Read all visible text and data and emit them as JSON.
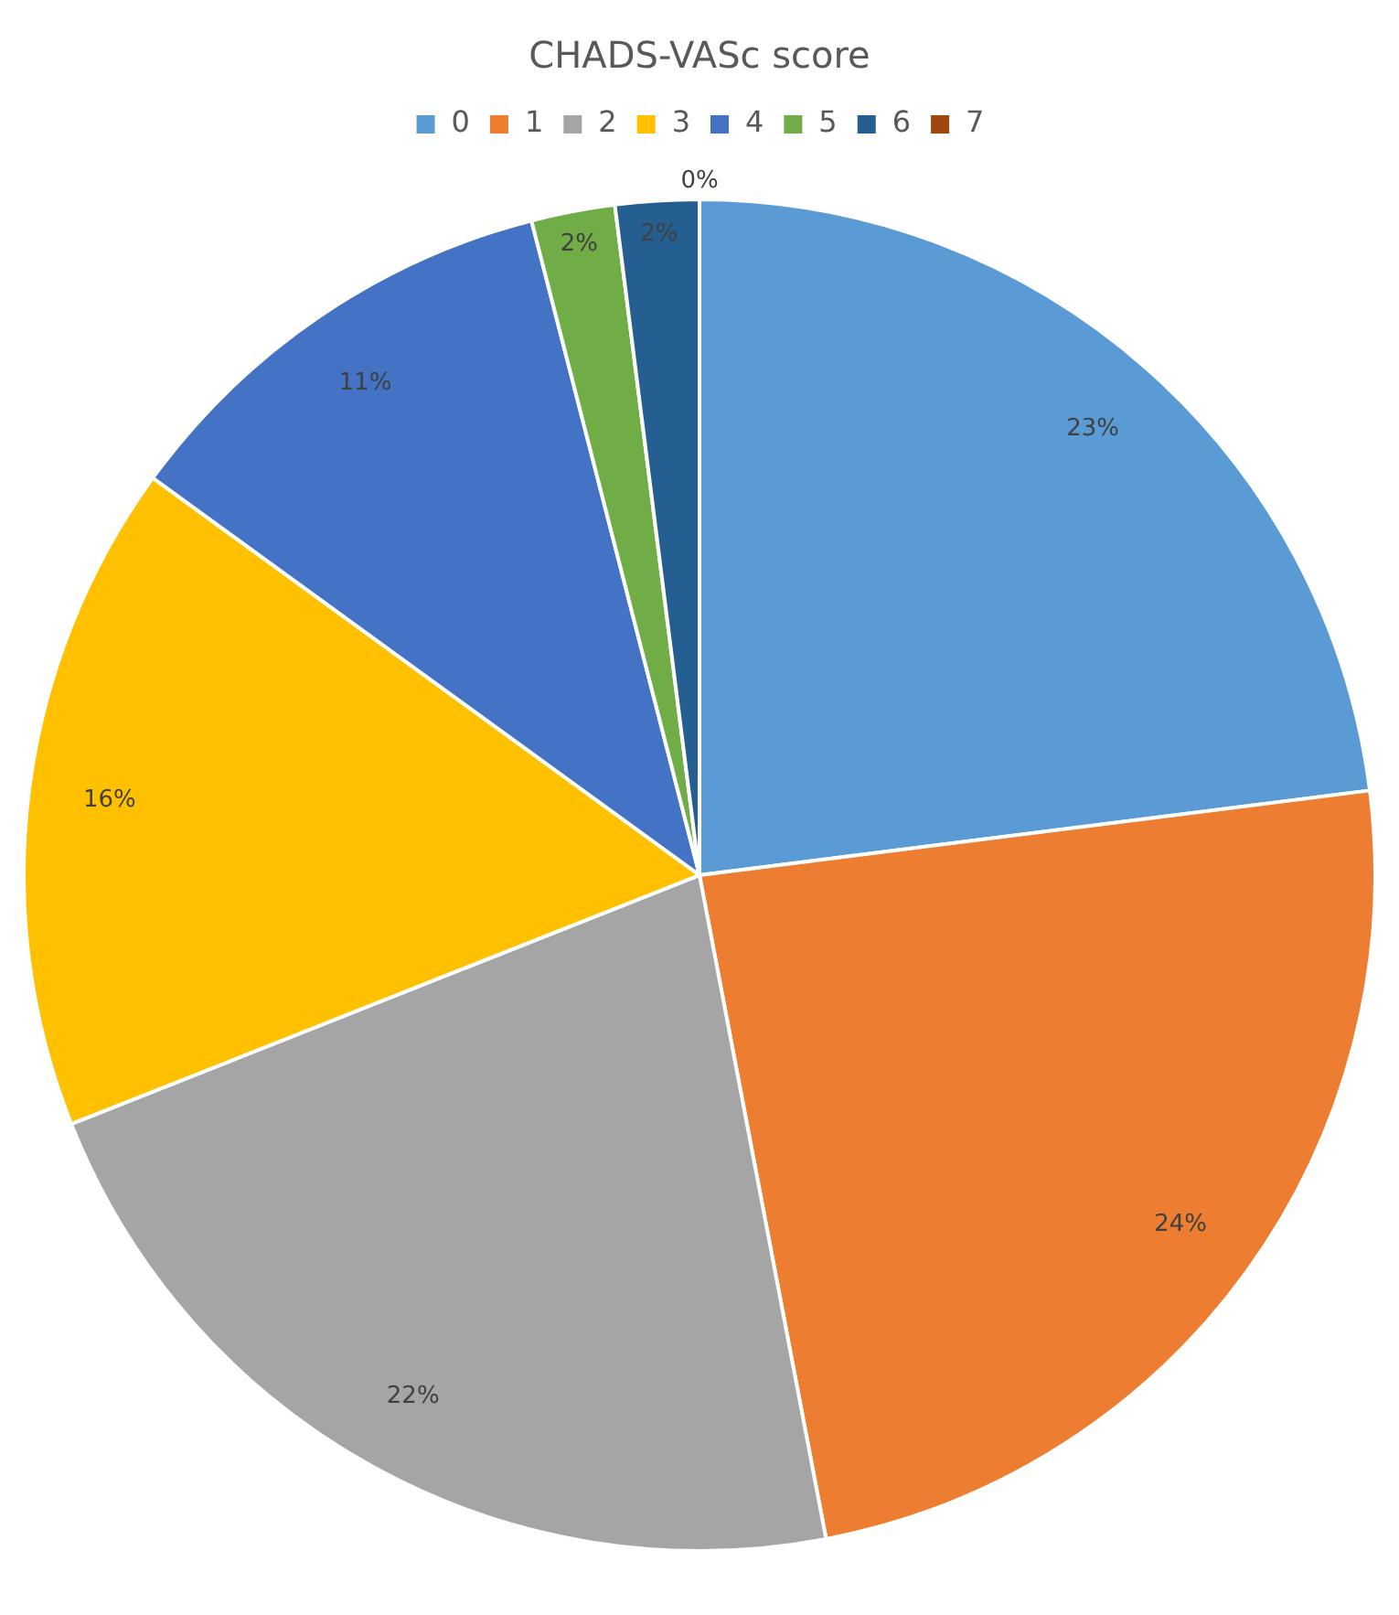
{
  "chart_data": {
    "type": "pie",
    "title": "CHADS-VASc score",
    "categories": [
      "0",
      "1",
      "2",
      "3",
      "4",
      "5",
      "6",
      "7"
    ],
    "values": [
      23,
      24,
      22,
      16,
      11,
      2,
      2,
      0
    ],
    "colors": [
      "#5b9bd5",
      "#ed7d31",
      "#a5a5a5",
      "#ffc000",
      "#4472c4",
      "#70ad47",
      "#255e91",
      "#9e480e"
    ],
    "value_labels": [
      "23%",
      "24%",
      "22%",
      "16%",
      "11%",
      "2%",
      "2%",
      "0%"
    ],
    "legend": "top"
  }
}
